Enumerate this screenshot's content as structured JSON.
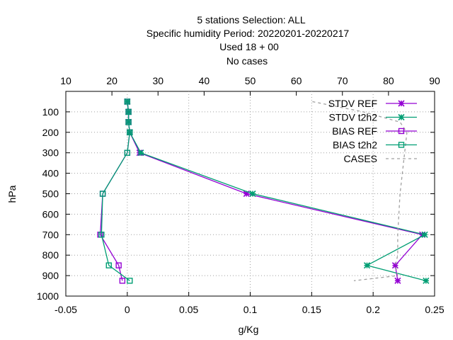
{
  "chart_data": {
    "type": "line",
    "title_lines": [
      "5 stations Selection: ALL",
      "Specific humidity  Period: 20220201-20220217",
      "Used  18  + 00",
      "No cases"
    ],
    "xlabel": "g/Kg",
    "ylabel": "hPa",
    "xlim": [
      -0.05,
      0.25
    ],
    "ylim": [
      1000,
      0
    ],
    "x_ticks": [
      "-0.05",
      "0",
      "0.05",
      "0.1",
      "0.15",
      "0.2",
      "0.25"
    ],
    "x_tick_values": [
      -0.05,
      0,
      0.05,
      0.1,
      0.15,
      0.2,
      0.25
    ],
    "x2lim": [
      10,
      90
    ],
    "x2_ticks": [
      "10",
      "20",
      "30",
      "40",
      "50",
      "60",
      "70",
      "80",
      "90"
    ],
    "x2_tick_values": [
      10,
      20,
      30,
      40,
      50,
      60,
      70,
      80,
      90
    ],
    "y_ticks": [
      "100",
      "200",
      "300",
      "400",
      "500",
      "600",
      "700",
      "800",
      "900",
      "1000"
    ],
    "y_tick_values": [
      100,
      200,
      300,
      400,
      500,
      600,
      700,
      800,
      900,
      1000
    ],
    "legend_position": "top-right",
    "series": [
      {
        "name": "STDV REF",
        "color": "#9400d3",
        "marker": "x",
        "axis": "x",
        "x": [
          0.0,
          0.001,
          0.001,
          0.002,
          0.01,
          0.097,
          0.24,
          0.218,
          0.22
        ],
        "y": [
          50,
          100,
          150,
          200,
          300,
          500,
          700,
          850,
          925
        ]
      },
      {
        "name": "STDV t2h2",
        "color": "#009e73",
        "marker": "x",
        "axis": "x",
        "x": [
          0.0,
          0.001,
          0.001,
          0.002,
          0.011,
          0.102,
          0.242,
          0.195,
          0.243
        ],
        "y": [
          50,
          100,
          150,
          200,
          300,
          500,
          700,
          850,
          925
        ]
      },
      {
        "name": "BIAS REF",
        "color": "#9400d3",
        "marker": "square",
        "axis": "x",
        "x": [
          0.0,
          0.001,
          0.001,
          0.002,
          0.0,
          -0.02,
          -0.022,
          -0.007,
          -0.004
        ],
        "y": [
          50,
          100,
          150,
          200,
          300,
          500,
          700,
          850,
          925
        ]
      },
      {
        "name": "BIAS t2h2",
        "color": "#009e73",
        "marker": "square",
        "axis": "x",
        "x": [
          0.0,
          0.001,
          0.001,
          0.002,
          0.0,
          -0.02,
          -0.021,
          -0.015,
          0.002
        ],
        "y": [
          50,
          100,
          150,
          200,
          300,
          500,
          700,
          850,
          925
        ]
      },
      {
        "name": "CASES",
        "color": "#a0a0a0",
        "marker": "none",
        "dash": true,
        "axis": "x2",
        "x": [
          63.5,
          74.5,
          82.5,
          84,
          83.5,
          82.5,
          82,
          82,
          81.5,
          82,
          72.5
        ],
        "y": [
          50,
          100,
          150,
          200,
          300,
          500,
          700,
          800,
          850,
          900,
          925
        ]
      }
    ]
  }
}
